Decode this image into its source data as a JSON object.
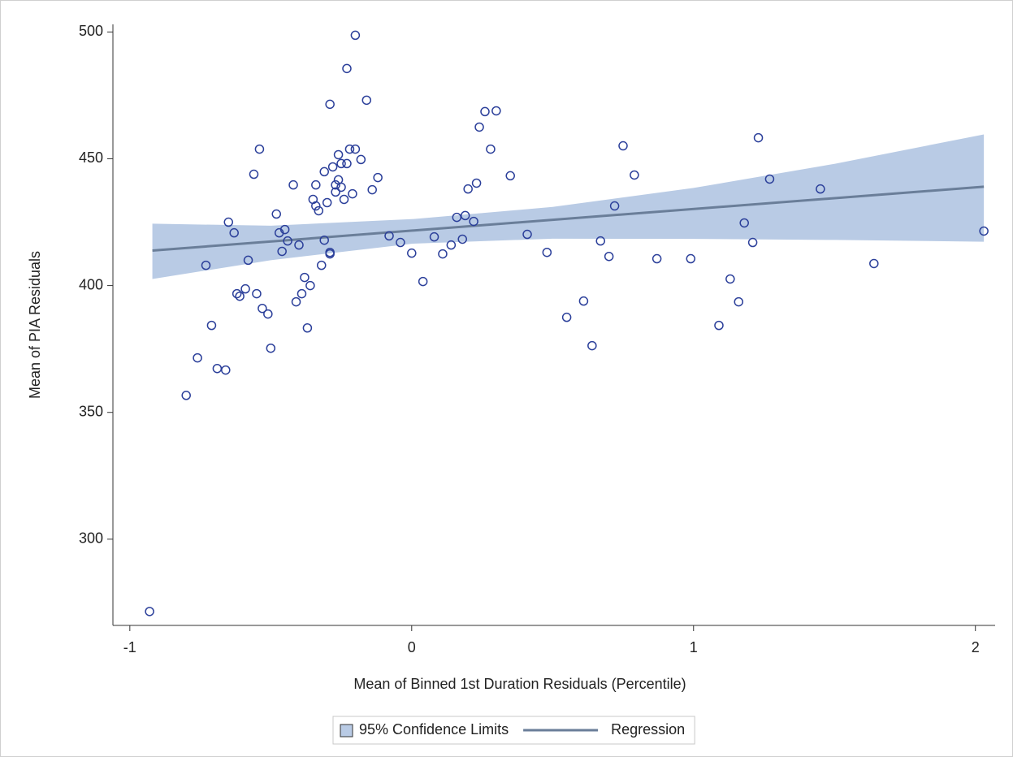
{
  "chart_data": {
    "type": "scatter",
    "x_label": "Mean of Binned 1st Duration Residuals (Percentile)",
    "y_label": "Mean of PIA Residuals",
    "xlim": [
      -1.06,
      2.07
    ],
    "ylim": [
      266,
      503
    ],
    "xticks": [
      -1,
      0,
      1,
      2
    ],
    "yticks": [
      300,
      350,
      400,
      450,
      500
    ],
    "legend": "bottom",
    "band": {
      "name": "95% Confidence Limits",
      "color": "#b9cbe5",
      "x": [
        -0.92,
        -0.5,
        0,
        0.5,
        1,
        1.5,
        2.03
      ],
      "lower": [
        402.6,
        410,
        416.5,
        418.5,
        418.4,
        418,
        417.3
      ],
      "upper": [
        424.4,
        423.6,
        426.2,
        431,
        438.5,
        448,
        459.6
      ]
    },
    "regression": {
      "name": "Regression",
      "color": "#6a7e99",
      "x": [
        -0.92,
        2.03
      ],
      "values": [
        413.8,
        439
      ]
    },
    "points": {
      "color": "#2b3f9a",
      "x": [
        -0.93,
        -0.8,
        -0.76,
        -0.73,
        -0.71,
        -0.69,
        -0.66,
        -0.65,
        -0.63,
        -0.62,
        -0.61,
        -0.59,
        -0.58,
        -0.56,
        -0.55,
        -0.54,
        -0.53,
        -0.51,
        -0.5,
        -0.48,
        -0.47,
        -0.46,
        -0.45,
        -0.44,
        -0.42,
        -0.41,
        -0.4,
        -0.39,
        -0.38,
        -0.37,
        -0.36,
        -0.35,
        -0.34,
        -0.34,
        -0.33,
        -0.32,
        -0.31,
        -0.31,
        -0.3,
        -0.29,
        -0.29,
        -0.29,
        -0.28,
        -0.27,
        -0.27,
        -0.26,
        -0.26,
        -0.25,
        -0.25,
        -0.24,
        -0.23,
        -0.23,
        -0.22,
        -0.21,
        -0.2,
        -0.2,
        -0.18,
        -0.16,
        -0.14,
        -0.12,
        -0.08,
        -0.04,
        0.0,
        0.04,
        0.08,
        0.11,
        0.14,
        0.16,
        0.18,
        0.19,
        0.2,
        0.22,
        0.23,
        0.24,
        0.26,
        0.28,
        0.3,
        0.35,
        0.41,
        0.48,
        0.55,
        0.61,
        0.64,
        0.67,
        0.7,
        0.72,
        0.75,
        0.79,
        0.87,
        0.99,
        1.09,
        1.13,
        1.16,
        1.18,
        1.21,
        1.23,
        1.27,
        1.45,
        1.64,
        2.03
      ],
      "values": [
        271.5,
        356.7,
        371.5,
        408,
        384.3,
        367.3,
        366.7,
        425,
        420.8,
        396.8,
        395.8,
        398.7,
        410,
        443.9,
        396.8,
        453.8,
        391,
        388.8,
        375.3,
        428.2,
        420.8,
        413.5,
        422.1,
        417.6,
        439.7,
        393.6,
        416,
        396.8,
        403.2,
        383.3,
        400,
        434,
        439.7,
        431.4,
        429.5,
        408,
        444.9,
        417.9,
        432.7,
        412.5,
        471.5,
        413.1,
        446.8,
        436.9,
        439.7,
        441.7,
        451.6,
        438.8,
        448.1,
        434,
        485.6,
        448.1,
        453.8,
        436.2,
        453.8,
        498.7,
        449.7,
        473.1,
        437.8,
        442.6,
        419.6,
        417,
        412.8,
        401.6,
        419.2,
        412.5,
        416,
        426.9,
        418.3,
        427.6,
        438.1,
        425.3,
        440.4,
        462.5,
        468.6,
        453.8,
        468.9,
        443.3,
        420.2,
        413.1,
        387.5,
        393.9,
        376.3,
        417.6,
        411.5,
        431.4,
        455.1,
        443.6,
        410.6,
        410.6,
        384.3,
        402.6,
        393.6,
        424.7,
        417,
        458.3,
        442,
        438.1,
        408.7,
        421.5
      ]
    }
  }
}
